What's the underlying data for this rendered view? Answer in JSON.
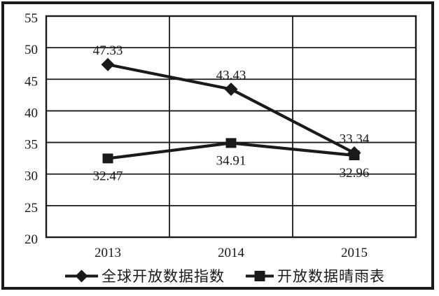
{
  "colors": {
    "ink": "#1a1a1a",
    "background": "#ffffff"
  },
  "chart_data": {
    "type": "line",
    "title": "",
    "xlabel": "",
    "ylabel": "",
    "categories": [
      "2013",
      "2014",
      "2015"
    ],
    "series": [
      {
        "name": "全球开放数据指数",
        "marker": "diamond",
        "values": [
          47.33,
          43.43,
          33.34
        ],
        "data_labels": [
          "47.33",
          "43.43",
          "33.34"
        ],
        "label_position": "above"
      },
      {
        "name": "开放数据晴雨表",
        "marker": "square",
        "values": [
          32.47,
          34.91,
          32.96
        ],
        "data_labels": [
          "32.47",
          "34.91",
          "32.96"
        ],
        "label_position": "below"
      }
    ],
    "ylim": [
      20,
      55
    ],
    "yticks": [
      20,
      25,
      30,
      35,
      40,
      45,
      50,
      55
    ],
    "grid": "on",
    "line_color": "#1a1a1a",
    "legend_position": "bottom"
  }
}
